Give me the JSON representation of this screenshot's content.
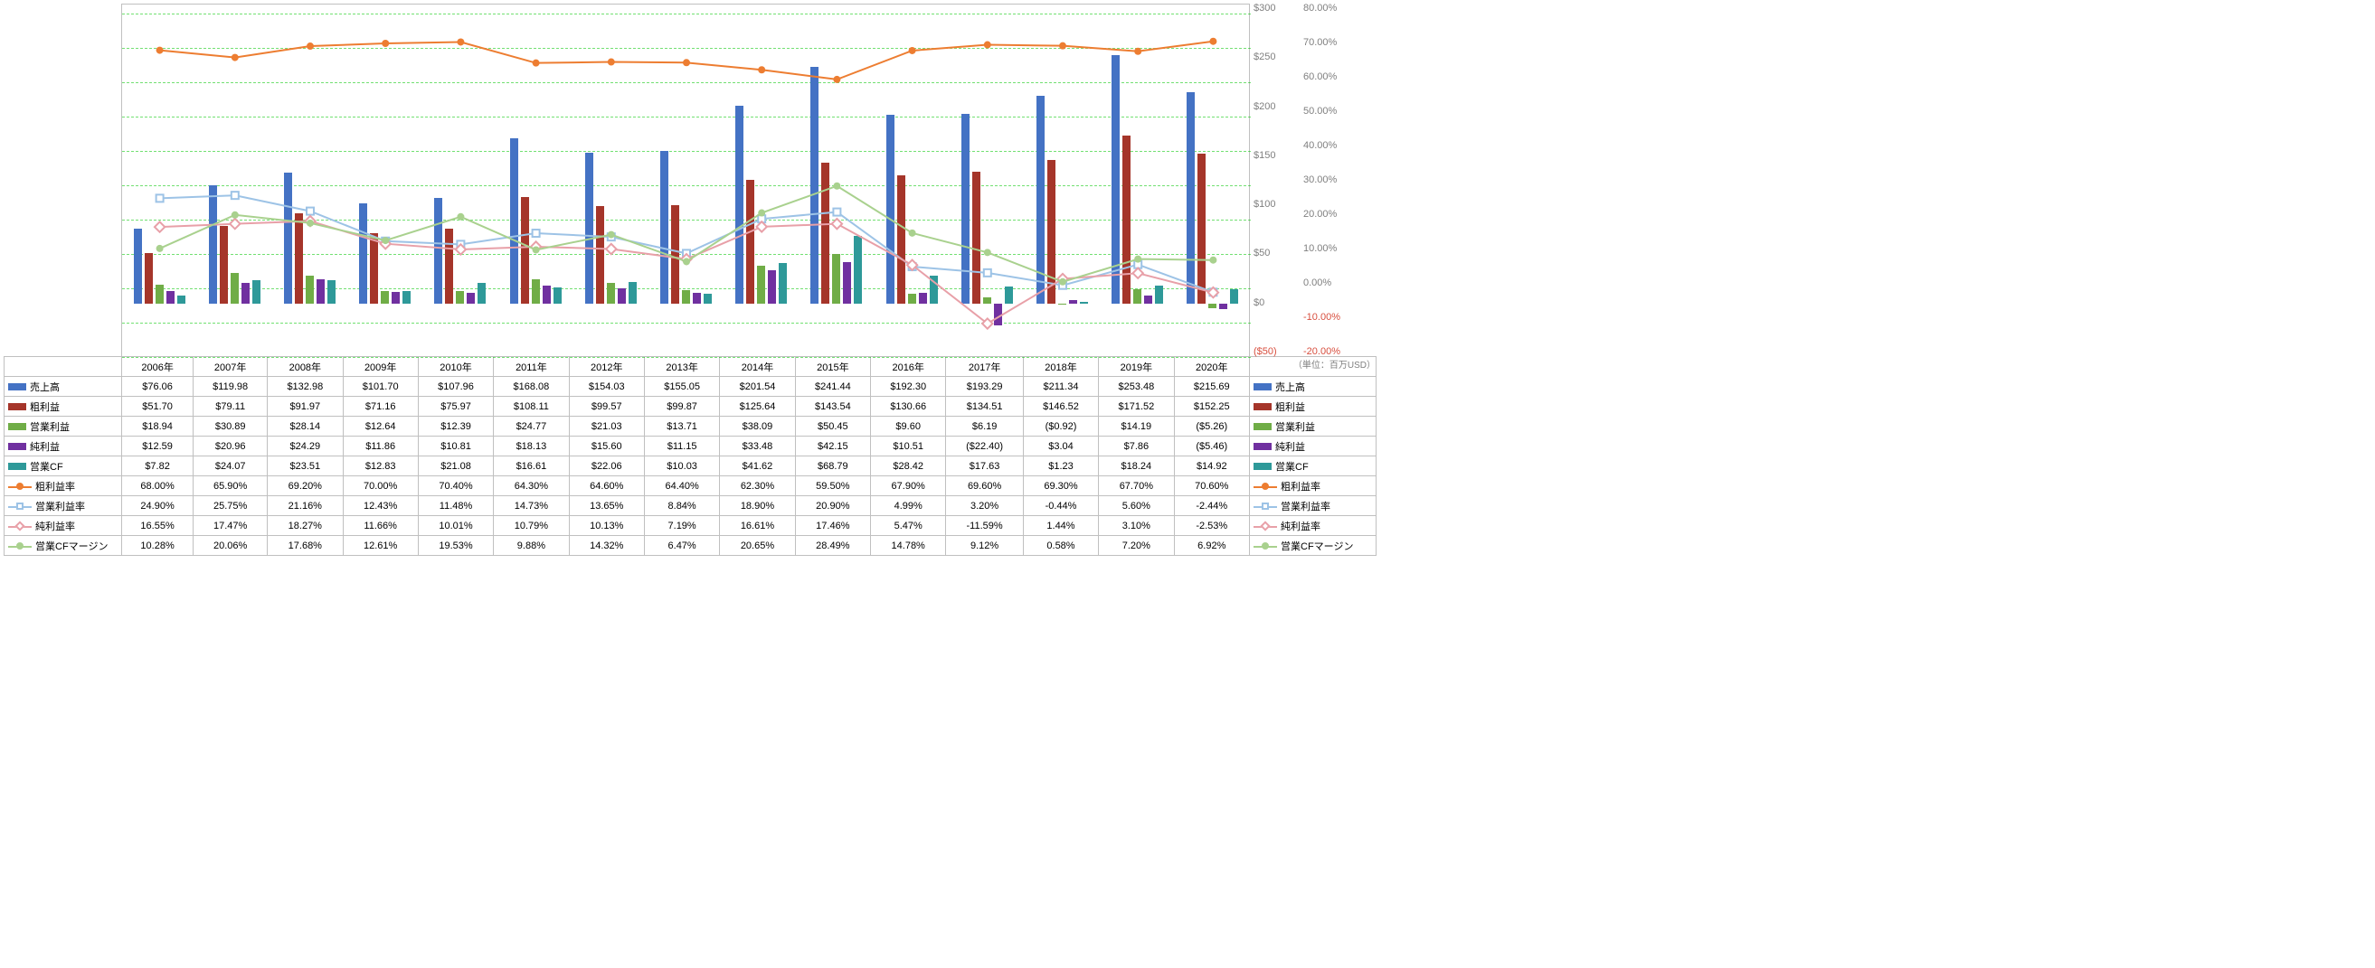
{
  "years": [
    "2006年",
    "2007年",
    "2008年",
    "2009年",
    "2010年",
    "2011年",
    "2012年",
    "2013年",
    "2014年",
    "2015年",
    "2016年",
    "2017年",
    "2018年",
    "2019年",
    "2020年"
  ],
  "unit_note": "（単位：百万USD）",
  "series": {
    "revenue": {
      "label": "売上高",
      "color": "#4472c4",
      "type": "bar",
      "vals": [
        76.06,
        119.98,
        132.98,
        101.7,
        107.96,
        168.08,
        154.03,
        155.05,
        201.54,
        241.44,
        192.3,
        193.29,
        211.34,
        253.48,
        215.69
      ]
    },
    "gross": {
      "label": "粗利益",
      "color": "#a5352a",
      "type": "bar",
      "vals": [
        51.7,
        79.11,
        91.97,
        71.16,
        75.97,
        108.11,
        99.57,
        99.87,
        125.64,
        143.54,
        130.66,
        134.51,
        146.52,
        171.52,
        152.25
      ]
    },
    "opinc": {
      "label": "営業利益",
      "color": "#70ad47",
      "type": "bar",
      "vals": [
        18.94,
        30.89,
        28.14,
        12.64,
        12.39,
        24.77,
        21.03,
        13.71,
        38.09,
        50.45,
        9.6,
        6.19,
        -0.92,
        14.19,
        -5.26
      ]
    },
    "netinc": {
      "label": "純利益",
      "color": "#7030a0",
      "type": "bar",
      "vals": [
        12.59,
        20.96,
        24.29,
        11.86,
        10.81,
        18.13,
        15.6,
        11.15,
        33.48,
        42.15,
        10.51,
        -22.4,
        3.04,
        7.86,
        -5.46
      ]
    },
    "opcf": {
      "label": "営業CF",
      "color": "#2e9999",
      "type": "bar",
      "vals": [
        7.82,
        24.07,
        23.51,
        12.83,
        21.08,
        16.61,
        22.06,
        10.03,
        41.62,
        68.79,
        28.42,
        17.63,
        1.23,
        18.24,
        14.92
      ]
    },
    "gmargin": {
      "label": "粗利益率",
      "color": "#ed7d31",
      "type": "line",
      "marker": "circle",
      "vals": [
        68.0,
        65.9,
        69.2,
        70.0,
        70.4,
        64.3,
        64.6,
        64.4,
        62.3,
        59.5,
        67.9,
        69.6,
        69.3,
        67.7,
        70.6
      ]
    },
    "opmargin": {
      "label": "営業利益率",
      "color": "#9dc3e6",
      "type": "line",
      "marker": "square",
      "vals": [
        24.9,
        25.75,
        21.16,
        12.43,
        11.48,
        14.73,
        13.65,
        8.84,
        18.9,
        20.9,
        4.99,
        3.2,
        -0.44,
        5.6,
        -2.44
      ]
    },
    "netmargin": {
      "label": "純利益率",
      "color": "#e8a0a8",
      "type": "line",
      "marker": "diamond",
      "vals": [
        16.55,
        17.47,
        18.27,
        11.66,
        10.01,
        10.79,
        10.13,
        7.19,
        16.61,
        17.46,
        5.47,
        -11.59,
        1.44,
        3.1,
        -2.53
      ]
    },
    "cfmargin": {
      "label": "営業CFマージン",
      "color": "#a9d18e",
      "type": "line",
      "marker": "circle",
      "vals": [
        10.28,
        20.06,
        17.68,
        12.61,
        19.53,
        9.88,
        14.32,
        6.47,
        20.65,
        28.49,
        14.78,
        9.12,
        0.58,
        7.2,
        6.92
      ]
    }
  },
  "row_order": [
    "revenue",
    "gross",
    "opinc",
    "netinc",
    "opcf",
    "gmargin",
    "opmargin",
    "netmargin",
    "cfmargin"
  ],
  "cells": {
    "revenue": [
      "$76.06",
      "$119.98",
      "$132.98",
      "$101.70",
      "$107.96",
      "$168.08",
      "$154.03",
      "$155.05",
      "$201.54",
      "$241.44",
      "$192.30",
      "$193.29",
      "$211.34",
      "$253.48",
      "$215.69"
    ],
    "gross": [
      "$51.70",
      "$79.11",
      "$91.97",
      "$71.16",
      "$75.97",
      "$108.11",
      "$99.57",
      "$99.87",
      "$125.64",
      "$143.54",
      "$130.66",
      "$134.51",
      "$146.52",
      "$171.52",
      "$152.25"
    ],
    "opinc": [
      "$18.94",
      "$30.89",
      "$28.14",
      "$12.64",
      "$12.39",
      "$24.77",
      "$21.03",
      "$13.71",
      "$38.09",
      "$50.45",
      "$9.60",
      "$6.19",
      "($0.92)",
      "$14.19",
      "($5.26)"
    ],
    "netinc": [
      "$12.59",
      "$20.96",
      "$24.29",
      "$11.86",
      "$10.81",
      "$18.13",
      "$15.60",
      "$11.15",
      "$33.48",
      "$42.15",
      "$10.51",
      "($22.40)",
      "$3.04",
      "$7.86",
      "($5.46)"
    ],
    "opcf": [
      "$7.82",
      "$24.07",
      "$23.51",
      "$12.83",
      "$21.08",
      "$16.61",
      "$22.06",
      "$10.03",
      "$41.62",
      "$68.79",
      "$28.42",
      "$17.63",
      "$1.23",
      "$18.24",
      "$14.92"
    ],
    "gmargin": [
      "68.00%",
      "65.90%",
      "69.20%",
      "70.00%",
      "70.40%",
      "64.30%",
      "64.60%",
      "64.40%",
      "62.30%",
      "59.50%",
      "67.90%",
      "69.60%",
      "69.30%",
      "67.70%",
      "70.60%"
    ],
    "opmargin": [
      "24.90%",
      "25.75%",
      "21.16%",
      "12.43%",
      "11.48%",
      "14.73%",
      "13.65%",
      "8.84%",
      "18.90%",
      "20.90%",
      "4.99%",
      "3.20%",
      "-0.44%",
      "5.60%",
      "-2.44%"
    ],
    "netmargin": [
      "16.55%",
      "17.47%",
      "18.27%",
      "11.66%",
      "10.01%",
      "10.79%",
      "10.13%",
      "7.19%",
      "16.61%",
      "17.46%",
      "5.47%",
      "-11.59%",
      "1.44%",
      "3.10%",
      "-2.53%"
    ],
    "cfmargin": [
      "10.28%",
      "20.06%",
      "17.68%",
      "12.61%",
      "19.53%",
      "9.88%",
      "14.32%",
      "6.47%",
      "20.65%",
      "28.49%",
      "14.78%",
      "9.12%",
      "0.58%",
      "7.20%",
      "6.92%"
    ]
  },
  "axis_usd": {
    "min": -50,
    "max": 300,
    "step": 50,
    "labels": [
      "($50)",
      "$0",
      "$50",
      "$100",
      "$150",
      "$200",
      "$250",
      "$300"
    ]
  },
  "axis_pct": {
    "min": -20,
    "max": 80,
    "step": 10,
    "labels": [
      "-20.00%",
      "-10.00%",
      "0.00%",
      "10.00%",
      "20.00%",
      "30.00%",
      "40.00%",
      "50.00%",
      "60.00%",
      "70.00%",
      "80.00%"
    ]
  }
}
